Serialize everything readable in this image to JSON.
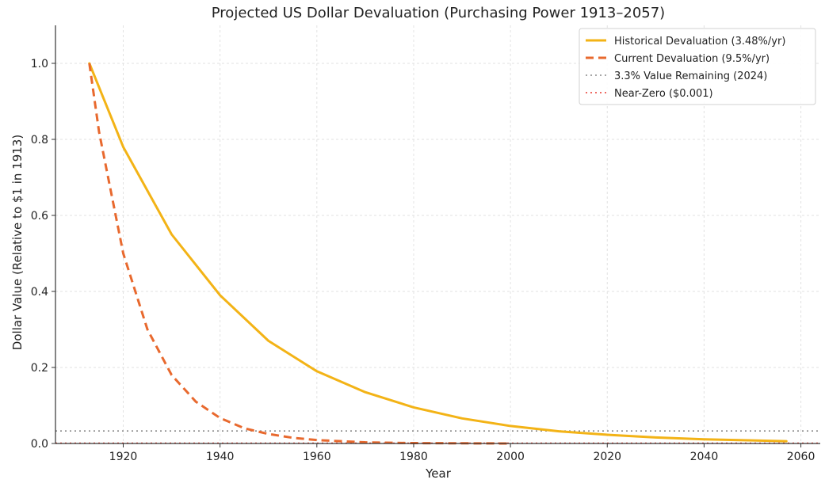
{
  "chart_data": {
    "type": "line",
    "title": "Projected US Dollar Devaluation (Purchasing Power 1913–2057)",
    "xlabel": "Year",
    "ylabel": "Dollar Value (Relative to $1 in 1913)",
    "xlim": [
      1906,
      2064
    ],
    "ylim": [
      0,
      1.1
    ],
    "xticks": [
      1920,
      1940,
      1960,
      1980,
      2000,
      2020,
      2040,
      2060
    ],
    "yticks": [
      0.0,
      0.2,
      0.4,
      0.6,
      0.8,
      1.0
    ],
    "x_tick_labels": [
      "1920",
      "1940",
      "1960",
      "1980",
      "2000",
      "2020",
      "2040",
      "2060"
    ],
    "y_tick_labels": [
      "0.0",
      "0.2",
      "0.4",
      "0.6",
      "0.8",
      "1.0"
    ],
    "grid": true,
    "legend_position": "top-right",
    "series": [
      {
        "name": "Historical Devaluation (3.48%/yr)",
        "style": "solid",
        "color": "#f3b316",
        "x": [
          1913,
          1920,
          1930,
          1940,
          1950,
          1960,
          1970,
          1980,
          1990,
          2000,
          2010,
          2020,
          2030,
          2040,
          2050,
          2057
        ],
        "values": [
          1.0,
          0.78,
          0.55,
          0.39,
          0.27,
          0.19,
          0.135,
          0.095,
          0.066,
          0.046,
          0.032,
          0.023,
          0.016,
          0.011,
          0.008,
          0.006
        ]
      },
      {
        "name": "Current Devaluation (9.5%/yr)",
        "style": "dashed",
        "color": "#e8692e",
        "x": [
          1913,
          1915,
          1920,
          1925,
          1930,
          1935,
          1940,
          1945,
          1950,
          1955,
          1960,
          1970,
          1980,
          2000
        ],
        "values": [
          1.0,
          0.82,
          0.5,
          0.3,
          0.18,
          0.11,
          0.067,
          0.04,
          0.025,
          0.015,
          0.009,
          0.003,
          0.001,
          0.0
        ]
      }
    ],
    "reference_lines": [
      {
        "name": "3.3% Value Remaining (2024)",
        "y": 0.033,
        "style": "dotted",
        "color": "#888888"
      },
      {
        "name": "Near-Zero ($0.001)",
        "y": 0.001,
        "style": "dotted",
        "color": "#e8392e"
      }
    ]
  }
}
